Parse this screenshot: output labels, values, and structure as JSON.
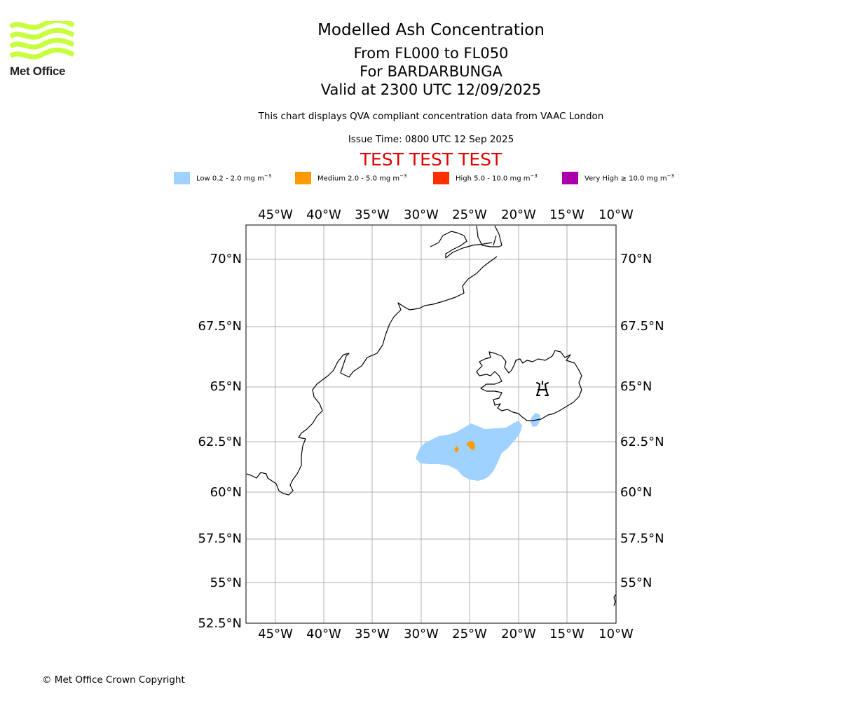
{
  "logo": {
    "brand": "Met Office",
    "color": "#c7ff3c",
    "icon": "met-office-waves-logo"
  },
  "header": {
    "title": "Modelled Ash Concentration",
    "line1": "From FL000 to FL050",
    "line2": "For BARDARBUNGA",
    "line3": "Valid at 2300 UTC 12/09/2025",
    "note": "This chart displays QVA compliant concentration data from VAAC London",
    "issue_time": "Issue Time: 0800 UTC 12 Sep 2025",
    "test_banner": "TEST TEST TEST",
    "test_color": "#e00000"
  },
  "legend": [
    {
      "label": "Low 0.2 - 2.0 mg m",
      "color": "#a0d2ff"
    },
    {
      "label": "Medium 2.0 - 5.0 mg m",
      "color": "#ff9a00"
    },
    {
      "label": "High 5.0 - 10.0 mg m",
      "color": "#ff3000"
    },
    {
      "label": "Very High ≥ 10.0 mg m",
      "color": "#aa00aa"
    }
  ],
  "legend_unit_exp": "−3",
  "map": {
    "lon_ticks": [
      "45°W",
      "40°W",
      "35°W",
      "30°W",
      "25°W",
      "20°W",
      "15°W",
      "10°W"
    ],
    "lat_ticks": [
      "52.5°N",
      "55°N",
      "57.5°N",
      "60°N",
      "62.5°N",
      "65°N",
      "67.5°N",
      "70°N"
    ],
    "volcano": "Bardarbunga",
    "volcano_icon": "volcano-icon",
    "gridline_color": "#b0b0b0",
    "ash_areas": [
      {
        "level": "Low",
        "region": "south-west of Iceland"
      },
      {
        "level": "Low",
        "region": "south-east coast of Iceland"
      },
      {
        "level": "Medium",
        "region": "south-west of Iceland"
      }
    ]
  },
  "footer": {
    "copyright": "© Met Office Crown Copyright"
  }
}
